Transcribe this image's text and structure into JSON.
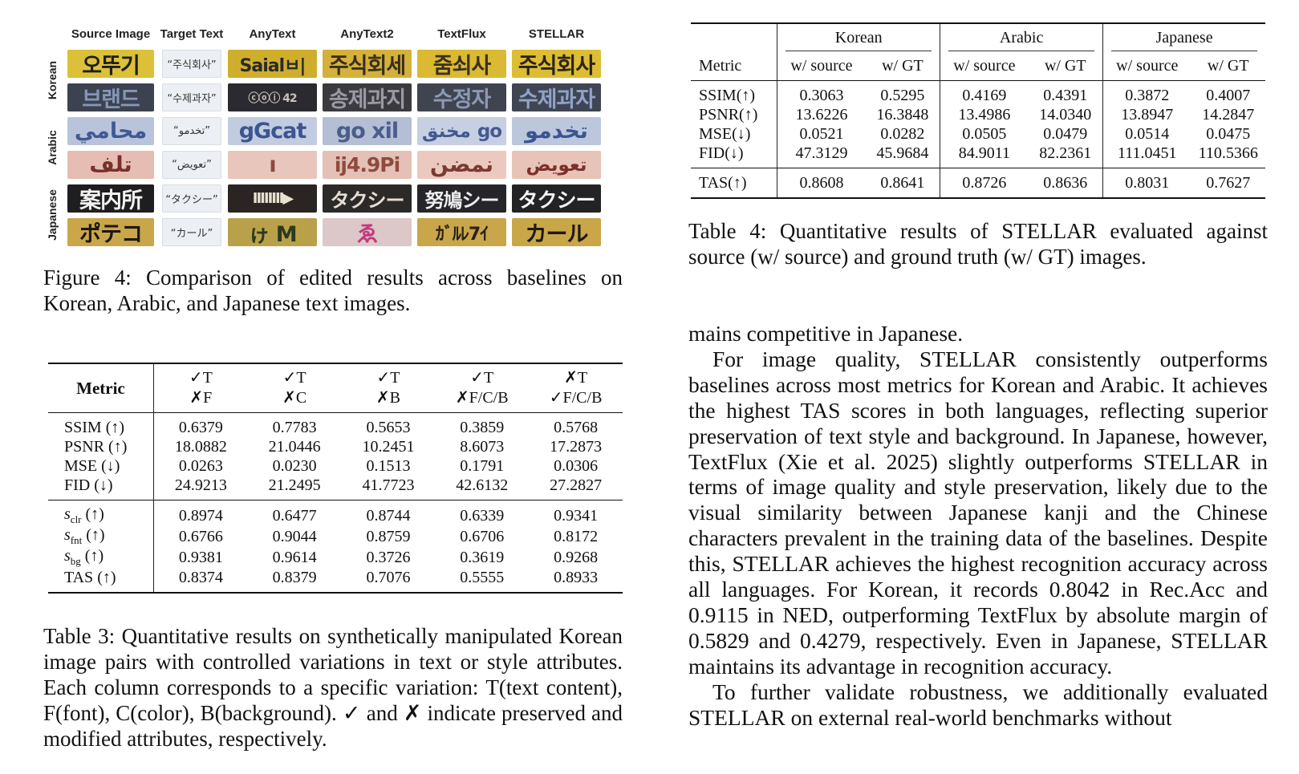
{
  "figure4": {
    "column_headers": [
      "Source Image",
      "Target Text",
      "AnyText",
      "AnyText2",
      "TextFlux",
      "STELLAR"
    ],
    "language_labels": [
      "Korean",
      "Arabic",
      "Japanese"
    ],
    "rows": [
      {
        "source": "오뚜기",
        "target": "“주식회사”",
        "anytext": "Saialㅂ|",
        "anytext2": "주식회세",
        "textflux": "줌쇠사",
        "stellar": "주식회사"
      },
      {
        "source": "브랜드",
        "target": "“수제과자”",
        "anytext": "ⓒⓞⓘ 42",
        "anytext2": "송제과지",
        "textflux": "수정자",
        "stellar": "수제과자"
      },
      {
        "source": "محامي",
        "target": "“تخدمو”",
        "anytext": "gGcat",
        "anytext2": "go xil",
        "textflux": "مخنق go",
        "stellar": "تخدمو"
      },
      {
        "source": "تلف",
        "target": "“تعويض”",
        "anytext": "ı",
        "anytext2": "ij4.9Pi",
        "textflux": "نمضن",
        "stellar": "تعويض"
      },
      {
        "source": "案内所",
        "target": "“タクシー”",
        "anytext": "IIIIIIII▶",
        "anytext2": "タクシー",
        "textflux": "努鳩シー",
        "stellar": "タクシー"
      },
      {
        "source": "ポテコ",
        "target": "“カール”",
        "anytext": "ゖ M",
        "anytext2": "ゑ",
        "textflux": "ｶﾞﾙﾚ7ｲ",
        "stellar": "カール"
      }
    ],
    "caption": "Figure 4: Comparison of edited results across baselines on Korean, Arabic, and Japanese text images."
  },
  "table3": {
    "metric_header": "Metric",
    "col_headers": [
      {
        "top": "✓T",
        "bottom": "✗F"
      },
      {
        "top": "✓T",
        "bottom": "✗C"
      },
      {
        "top": "✓T",
        "bottom": "✗B"
      },
      {
        "top": "✓T",
        "bottom": "✗F/C/B"
      },
      {
        "top": "✗T",
        "bottom": "✓F/C/B"
      }
    ],
    "group1": [
      {
        "metric": "SSIM (↑)",
        "values": [
          "0.6379",
          "0.7783",
          "0.5653",
          "0.3859",
          "0.5768"
        ],
        "bold": [
          false,
          true,
          false,
          false,
          false
        ]
      },
      {
        "metric": "PSNR (↑)",
        "values": [
          "18.0882",
          "21.0446",
          "10.2451",
          "8.6073",
          "17.2873"
        ],
        "bold": [
          false,
          true,
          false,
          false,
          false
        ]
      },
      {
        "metric": "MSE (↓)",
        "values": [
          "0.0263",
          "0.0230",
          "0.1513",
          "0.1791",
          "0.0306"
        ],
        "bold": [
          false,
          true,
          false,
          false,
          false
        ]
      },
      {
        "metric": "FID (↓)",
        "values": [
          "24.9213",
          "21.2495",
          "41.7723",
          "42.6132",
          "27.2827"
        ],
        "bold": [
          false,
          true,
          false,
          false,
          false
        ]
      }
    ],
    "group2": [
      {
        "metric_base": "s",
        "metric_sub": "clr",
        "metric_suffix": " (↑)",
        "values": [
          "0.8974",
          "0.6477",
          "0.8744",
          "0.6339",
          "0.9341"
        ],
        "bold": [
          false,
          false,
          false,
          false,
          true
        ]
      },
      {
        "metric_base": "s",
        "metric_sub": "fnt",
        "metric_suffix": " (↑)",
        "values": [
          "0.6766",
          "0.9044",
          "0.8759",
          "0.6706",
          "0.8172"
        ],
        "bold": [
          false,
          true,
          false,
          false,
          false
        ]
      },
      {
        "metric_base": "s",
        "metric_sub": "bg",
        "metric_suffix": " (↑)",
        "values": [
          "0.9381",
          "0.9614",
          "0.3726",
          "0.3619",
          "0.9268"
        ],
        "bold": [
          false,
          true,
          false,
          false,
          false
        ]
      },
      {
        "metric_base": "TAS",
        "metric_sub": "",
        "metric_suffix": " (↑)",
        "values": [
          "0.8374",
          "0.8379",
          "0.7076",
          "0.5555",
          "0.8933"
        ],
        "bold": [
          false,
          false,
          false,
          false,
          true
        ]
      }
    ],
    "caption": "Table 3: Quantitative results on synthetically manipulated Korean image pairs with controlled variations in text or style attributes. Each column corresponds to a specific variation: T(text content), F(font), C(color), B(background). ✓ and ✗ indicate preserved and modified attributes, respectively."
  },
  "table4": {
    "languages": [
      "Korean",
      "Arabic",
      "Japanese"
    ],
    "metric_header": "Metric",
    "sub_headers": [
      "w/ source",
      "w/ GT",
      "w/ source",
      "w/ GT",
      "w/ source",
      "w/ GT"
    ],
    "group1": [
      {
        "metric": "SSIM(↑)",
        "values": [
          "0.3063",
          "0.5295",
          "0.4169",
          "0.4391",
          "0.3872",
          "0.4007"
        ],
        "bold": [
          false,
          true,
          false,
          true,
          false,
          true
        ]
      },
      {
        "metric": "PSNR(↑)",
        "values": [
          "13.6226",
          "16.3848",
          "13.4986",
          "14.0340",
          "13.8947",
          "14.2847"
        ],
        "bold": [
          false,
          true,
          false,
          true,
          false,
          true
        ]
      },
      {
        "metric": "MSE(↓)",
        "values": [
          "0.0521",
          "0.0282",
          "0.0505",
          "0.0479",
          "0.0514",
          "0.0475"
        ],
        "bold": [
          false,
          true,
          false,
          true,
          false,
          true
        ]
      },
      {
        "metric": "FID(↓)",
        "values": [
          "47.3129",
          "45.9684",
          "84.9011",
          "82.2361",
          "111.0451",
          "110.5366"
        ],
        "bold": [
          false,
          true,
          false,
          true,
          false,
          true
        ]
      }
    ],
    "group2": [
      {
        "metric": "TAS(↑)",
        "values": [
          "0.8608",
          "0.8641",
          "0.8726",
          "0.8636",
          "0.8031",
          "0.7627"
        ],
        "bold": [
          false,
          true,
          true,
          false,
          true,
          false
        ]
      }
    ],
    "caption": "Table 4: Quantitative results of STELLAR evaluated against source (w/ source) and ground truth (w/ GT) images."
  },
  "body": {
    "p1": "mains competitive in Japanese.",
    "p2": "For image quality, STELLAR consistently outperforms baselines across most metrics for Korean and Arabic. It achieves the highest TAS scores in both languages, reflecting superior preservation of text style and background. In Japanese, however, TextFlux (Xie et al. 2025) slightly outperforms STELLAR in terms of image quality and style preservation, likely due to the visual similarity between Japanese kanji and the Chinese characters prevalent in the training data of the baselines. Despite this, STELLAR achieves the highest recognition accuracy across all languages. For Korean, it records 0.8042 in Rec.Acc and 0.9115 in NED, outperforming TextFlux by absolute margin of 0.5829 and 0.4279, respectively. Even in Japanese, STELLAR maintains its advantage in recognition accuracy.",
    "p3": "To further validate robustness, we additionally evaluated STELLAR on external real-world benchmarks without"
  },
  "tile_colors": {
    "yellow": "#d9b92a",
    "dark": "#3a3e4a",
    "slate": "#6c7ea8",
    "pink": "#e6b9b0",
    "black": "#1d1d1d",
    "gold": "#c8a23a"
  }
}
